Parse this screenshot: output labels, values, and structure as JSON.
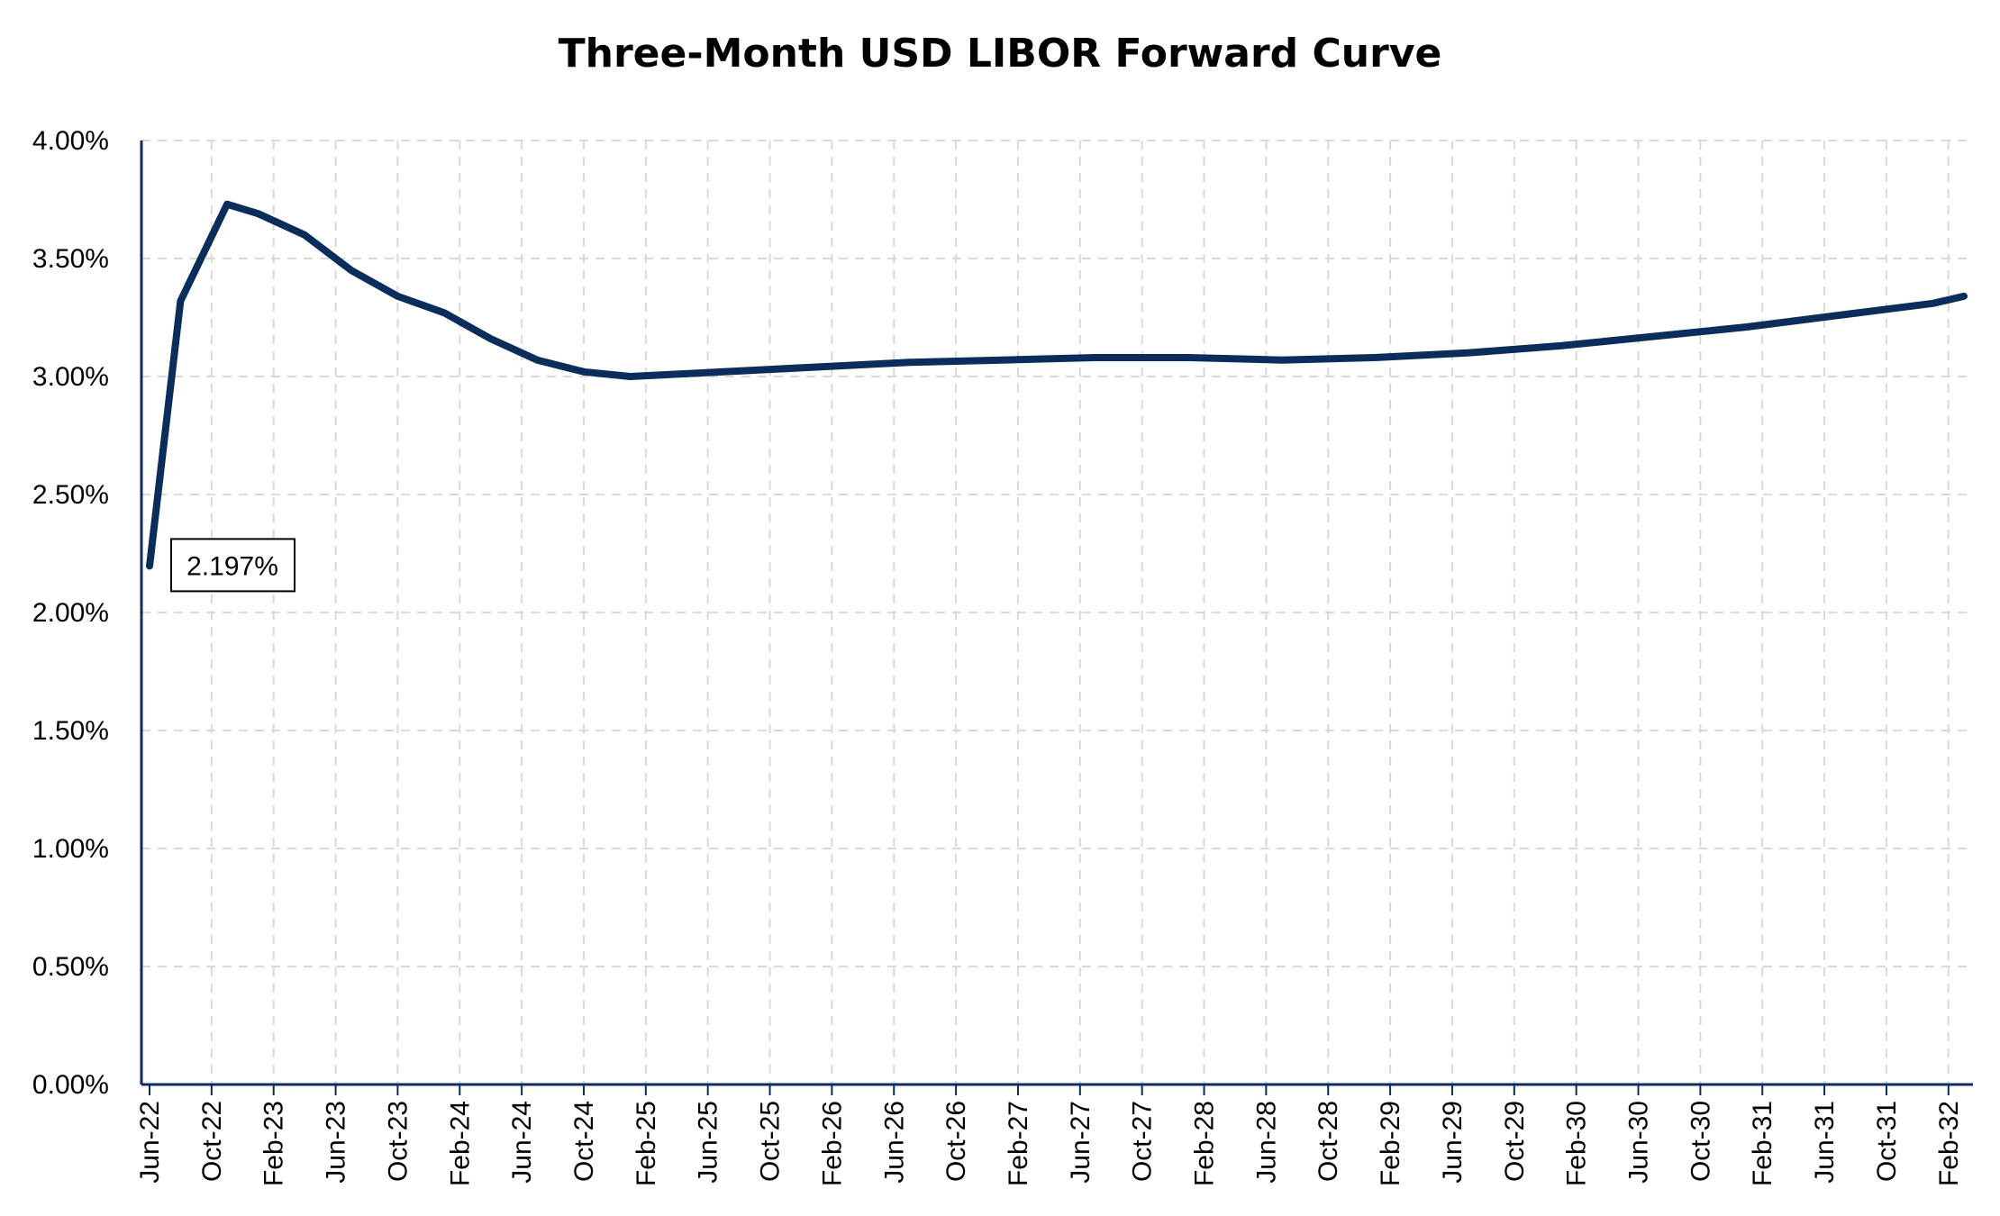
{
  "chart_data": {
    "type": "line",
    "title": "Three-Month USD LIBOR Forward Curve",
    "xlabel": "",
    "ylabel": "",
    "x_tick_labels": [
      "Jun-22",
      "Oct-22",
      "Feb-23",
      "Jun-23",
      "Oct-23",
      "Feb-24",
      "Jun-24",
      "Oct-24",
      "Feb-25",
      "Jun-25",
      "Oct-25",
      "Feb-26",
      "Jun-26",
      "Oct-26",
      "Feb-27",
      "Jun-27",
      "Oct-27",
      "Feb-28",
      "Jun-28",
      "Oct-28",
      "Feb-29",
      "Jun-29",
      "Oct-29",
      "Feb-30",
      "Jun-30",
      "Oct-30",
      "Feb-31",
      "Jun-31",
      "Oct-31",
      "Feb-32"
    ],
    "y_tick_labels": [
      "0.00%",
      "0.50%",
      "1.00%",
      "1.50%",
      "2.00%",
      "2.50%",
      "3.00%",
      "3.50%",
      "4.00%"
    ],
    "ylim": [
      0,
      4.0
    ],
    "grid": true,
    "legend": "none",
    "colors": {
      "line": "#0b2d5b",
      "axis": "#0b2d5b",
      "grid": "#d9d9d9"
    },
    "series": [
      {
        "points": [
          [
            "Jun-22",
            2.197
          ],
          [
            "Aug-22",
            3.32
          ],
          [
            "Nov-22",
            3.73
          ],
          [
            "Jan-23",
            3.69
          ],
          [
            "Apr-23",
            3.6
          ],
          [
            "Jul-23",
            3.45
          ],
          [
            "Oct-23",
            3.34
          ],
          [
            "Jan-24",
            3.27
          ],
          [
            "Apr-24",
            3.16
          ],
          [
            "Jul-24",
            3.07
          ],
          [
            "Oct-24",
            3.02
          ],
          [
            "Jan-25",
            3.0
          ],
          [
            "Apr-25",
            3.01
          ],
          [
            "Jul-25",
            3.02
          ],
          [
            "Oct-25",
            3.03
          ],
          [
            "Jan-26",
            3.04
          ],
          [
            "Jul-26",
            3.06
          ],
          [
            "Jan-27",
            3.07
          ],
          [
            "Jul-27",
            3.08
          ],
          [
            "Jan-28",
            3.08
          ],
          [
            "Jul-28",
            3.07
          ],
          [
            "Jan-29",
            3.08
          ],
          [
            "Jul-29",
            3.1
          ],
          [
            "Jan-30",
            3.13
          ],
          [
            "Jul-30",
            3.17
          ],
          [
            "Jan-31",
            3.21
          ],
          [
            "Jul-31",
            3.26
          ],
          [
            "Jan-32",
            3.31
          ],
          [
            "Mar-32",
            3.34
          ]
        ]
      }
    ],
    "annotations": [
      {
        "x": "Jun-22",
        "y": 2.197,
        "text": "2.197%"
      }
    ]
  }
}
